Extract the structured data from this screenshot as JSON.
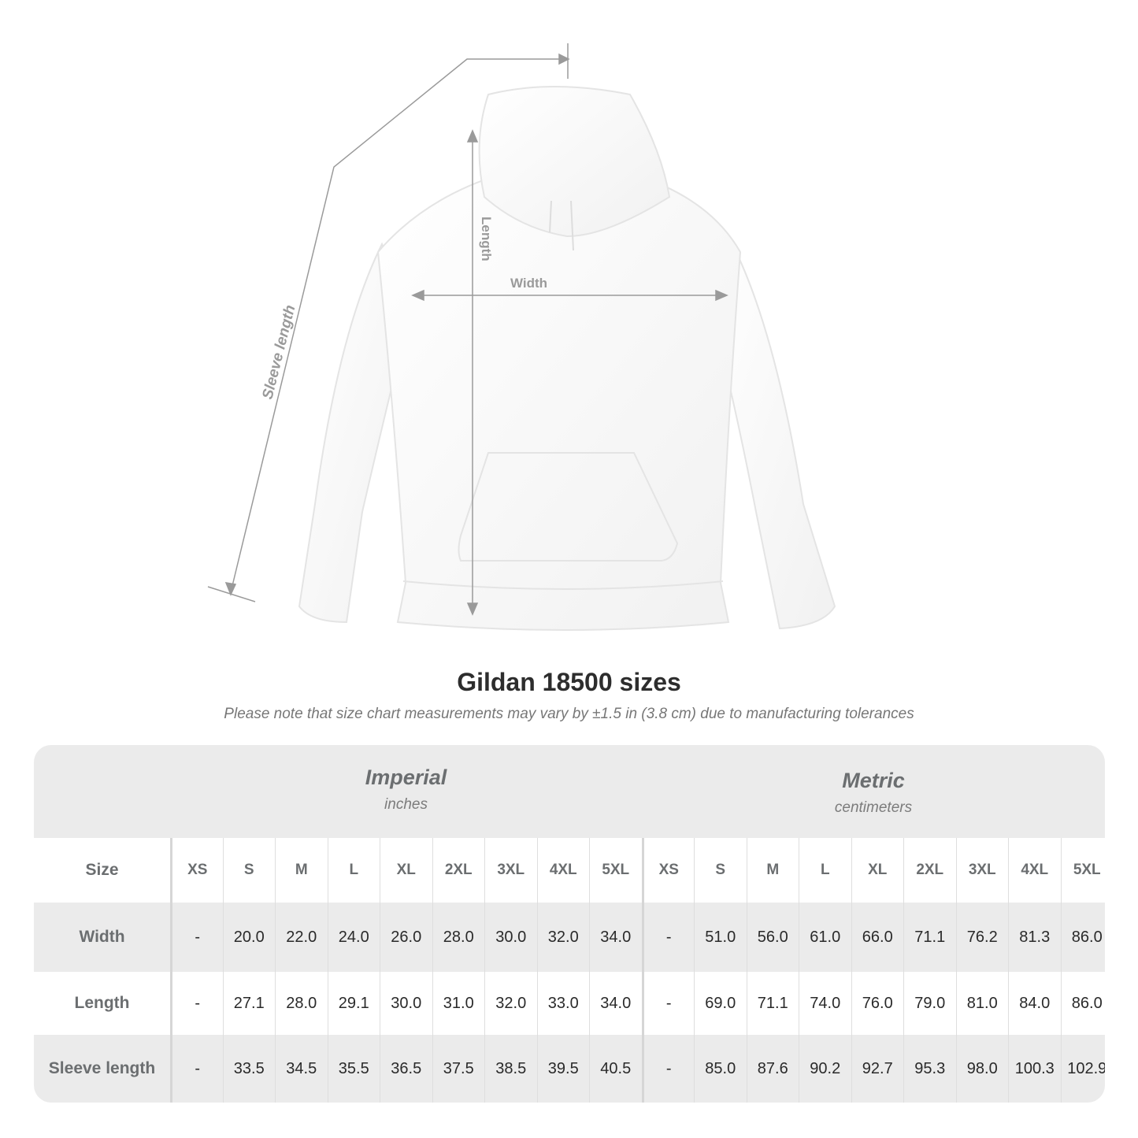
{
  "illustration": {
    "labels": {
      "length": "Length",
      "width": "Width",
      "sleeve": "Sleeve length"
    }
  },
  "title": "Gildan 18500 sizes",
  "note": "Please note that size chart measurements may vary by ±1.5 in (3.8 cm) due to manufacturing tolerances",
  "table": {
    "imperial": {
      "name": "Imperial",
      "unit": "inches"
    },
    "metric": {
      "name": "Metric",
      "unit": "centimeters"
    },
    "size_label": "Size",
    "sizes": [
      "XS",
      "S",
      "M",
      "L",
      "XL",
      "2XL",
      "3XL",
      "4XL",
      "5XL"
    ],
    "rows": [
      {
        "label": "Width",
        "imperial": [
          "-",
          "20.0",
          "22.0",
          "24.0",
          "26.0",
          "28.0",
          "30.0",
          "32.0",
          "34.0"
        ],
        "metric": [
          "-",
          "51.0",
          "56.0",
          "61.0",
          "66.0",
          "71.1",
          "76.2",
          "81.3",
          "86.0"
        ]
      },
      {
        "label": "Length",
        "imperial": [
          "-",
          "27.1",
          "28.0",
          "29.1",
          "30.0",
          "31.0",
          "32.0",
          "33.0",
          "34.0"
        ],
        "metric": [
          "-",
          "69.0",
          "71.1",
          "74.0",
          "76.0",
          "79.0",
          "81.0",
          "84.0",
          "86.0"
        ]
      },
      {
        "label": "Sleeve length",
        "imperial": [
          "-",
          "33.5",
          "34.5",
          "35.5",
          "36.5",
          "37.5",
          "38.5",
          "39.5",
          "40.5"
        ],
        "metric": [
          "-",
          "85.0",
          "87.6",
          "90.2",
          "92.7",
          "95.3",
          "98.0",
          "100.3",
          "102.9"
        ]
      }
    ]
  }
}
